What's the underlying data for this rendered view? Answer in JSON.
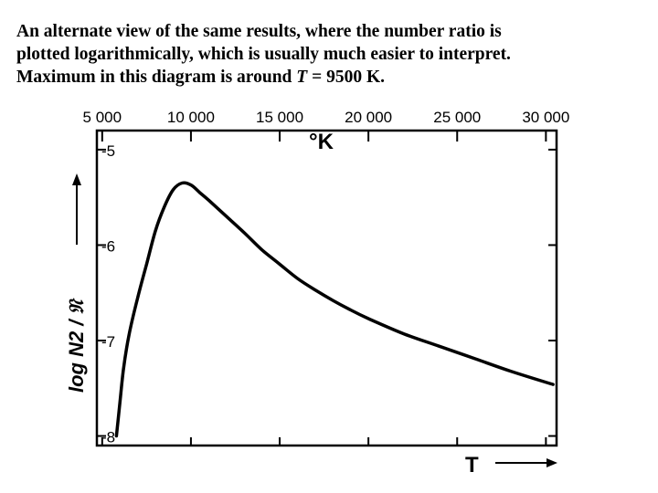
{
  "caption": {
    "line1": "An alternate view of the same results, where the number ratio is",
    "line2": "plotted logarithmically, which is usually much easier to interpret.",
    "line3_pre": "Maximum in this diagram is around ",
    "line3_var": "T",
    "line3_post": " = 9500 K."
  },
  "chart_data": {
    "type": "line",
    "x_ticks": [
      {
        "value": 5000,
        "label": "5 000"
      },
      {
        "value": 10000,
        "label": "10 000"
      },
      {
        "value": 15000,
        "label": "15 000"
      },
      {
        "value": 20000,
        "label": "20 000"
      },
      {
        "value": 25000,
        "label": "25 000"
      },
      {
        "value": 30000,
        "label": "30 000"
      }
    ],
    "y_ticks": [
      {
        "value": -5,
        "label": "-5"
      },
      {
        "value": -6,
        "label": "-6"
      },
      {
        "value": -7,
        "label": "-7"
      },
      {
        "value": -8,
        "label": "-8"
      }
    ],
    "xlim": [
      4700,
      30600
    ],
    "ylim": [
      -8.1,
      -4.8
    ],
    "unit_label": "°K",
    "xlabel": "T",
    "ylabel": "log N2 / 𝔑",
    "grid": false,
    "series": [
      {
        "x": [
          5800,
          6000,
          6200,
          6500,
          7000,
          7500,
          8000,
          8500,
          9000,
          9500,
          10000,
          10500,
          11000,
          12000,
          13000,
          14000,
          15000,
          16000,
          17000,
          18000,
          19000,
          20000,
          22000,
          24000,
          26000,
          28000,
          30400
        ],
        "y": [
          -8.0,
          -7.65,
          -7.3,
          -6.95,
          -6.55,
          -6.2,
          -5.85,
          -5.6,
          -5.42,
          -5.35,
          -5.37,
          -5.45,
          -5.53,
          -5.7,
          -5.87,
          -6.05,
          -6.2,
          -6.35,
          -6.47,
          -6.58,
          -6.68,
          -6.77,
          -6.93,
          -7.06,
          -7.19,
          -7.32,
          -7.46
        ]
      }
    ]
  }
}
